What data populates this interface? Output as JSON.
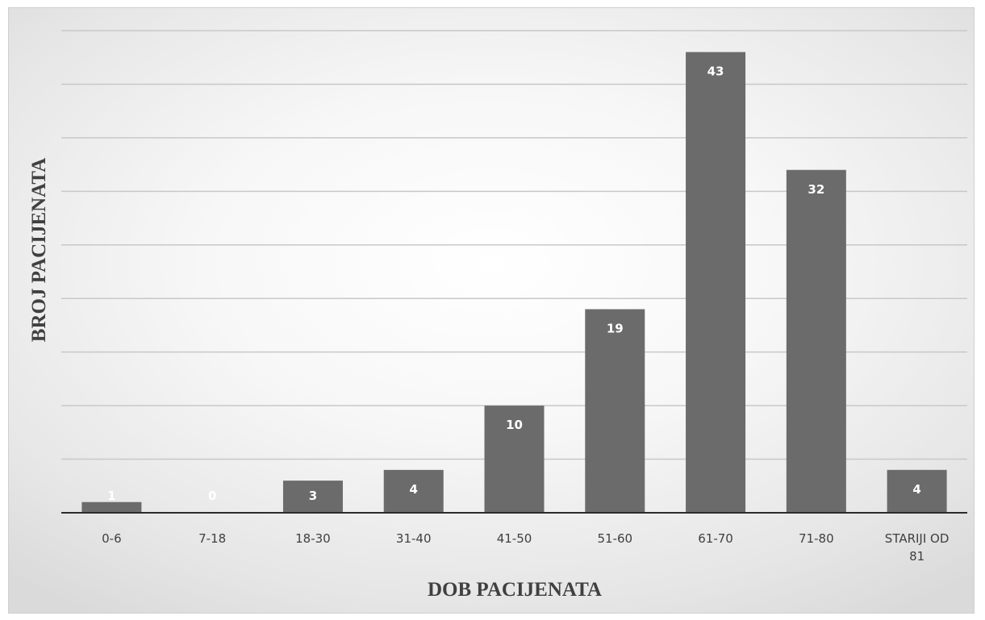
{
  "chart_data": {
    "type": "bar",
    "title": "",
    "xlabel": "DOB PACIJENATA",
    "ylabel": "BROJ PACIJENATA",
    "categories": [
      "0-6",
      "7-18",
      "18-30",
      "31-40",
      "41-50",
      "51-60",
      "61-70",
      "71-80",
      [
        "STARIJI OD",
        "81"
      ]
    ],
    "values": [
      1,
      0,
      3,
      4,
      10,
      19,
      43,
      32,
      4
    ],
    "ylim": [
      0,
      45
    ],
    "grid": true,
    "legend": "none",
    "data_labels": true,
    "y_tick_labels_shown": false,
    "colors": {
      "bar": "#6b6b6b",
      "gridline": "#c8c8c8",
      "axis": "#2b2b2b",
      "data_label": "#ffffff"
    }
  }
}
